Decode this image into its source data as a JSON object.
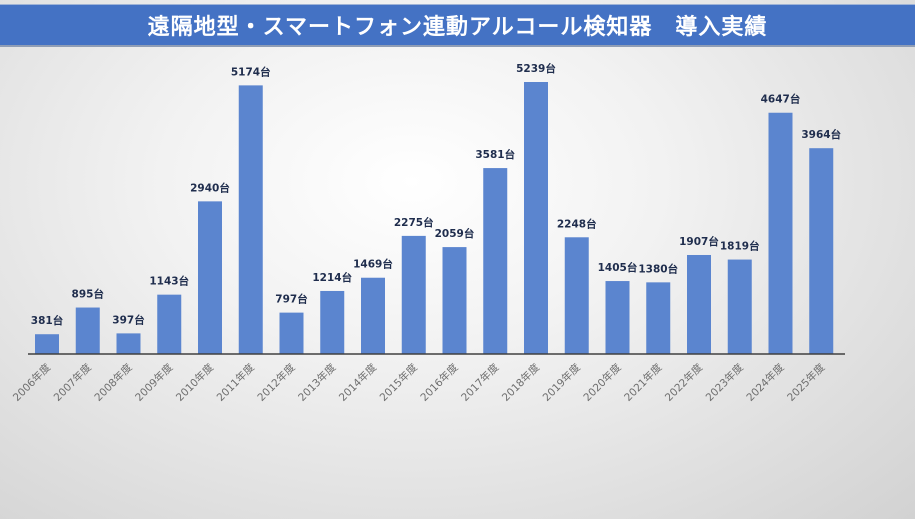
{
  "chart_data": {
    "type": "bar",
    "title": "遠隔地型・スマートフォン連動アルコール検知器　導入実績",
    "categories": [
      "2006年度",
      "2007年度",
      "2008年度",
      "2009年度",
      "2010年度",
      "2011年度",
      "2012年度",
      "2013年度",
      "2014年度",
      "2015年度",
      "2016年度",
      "2017年度",
      "2018年度",
      "2019年度",
      "2020年度",
      "2021年度",
      "2022年度",
      "2023年度",
      "2024年度",
      "2025年度"
    ],
    "values": [
      381,
      895,
      397,
      1143,
      2940,
      5174,
      797,
      1214,
      1469,
      2275,
      2059,
      3581,
      5239,
      2248,
      1405,
      1380,
      1907,
      1819,
      4647,
      3964
    ],
    "value_suffix": "台",
    "xlabel": "",
    "ylabel": "",
    "ylim": [
      0,
      5239
    ],
    "grid": false,
    "legend": "none",
    "colors": {
      "bar": "#5B85CF",
      "title_bar": "#4472C4",
      "axis": "#404040"
    }
  }
}
